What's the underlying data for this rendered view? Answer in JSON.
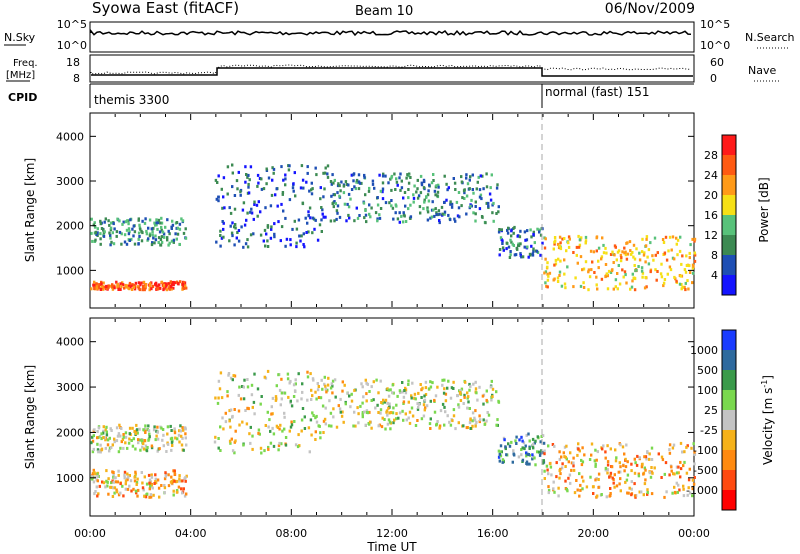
{
  "header": {
    "station": "Syowa East (fitACF)",
    "beam": "Beam 10",
    "date": "06/Nov/2009"
  },
  "panels": {
    "noise": {
      "left_label": "N.Sky",
      "right_label": "N.Search",
      "ticks": [
        "10^5",
        "10^0"
      ]
    },
    "freq": {
      "left_label_line1": "Freq.",
      "left_label_line2": "[MHz]",
      "left_ticks": [
        "18",
        "8"
      ],
      "right_label": "Nave",
      "right_ticks": [
        "60",
        "0"
      ]
    },
    "cpid": {
      "label": "CPID",
      "segments": [
        {
          "name": "themis 3300",
          "start_hour": 0,
          "end_hour": 18
        },
        {
          "name": "normal (fast) 151",
          "start_hour": 18,
          "end_hour": 24
        }
      ]
    }
  },
  "chart_data": [
    {
      "type": "heatmap",
      "title": "",
      "xlabel": "Time UT",
      "ylabel": "Slant Range [km]",
      "ylim": [
        180,
        4500
      ],
      "yticks": [
        "1000",
        "2000",
        "3000",
        "4000"
      ],
      "xlim": [
        0,
        24
      ],
      "colorbar": {
        "label": "Power [dB]",
        "ticks": [
          "4",
          "8",
          "12",
          "16",
          "20",
          "24",
          "28"
        ],
        "colors": [
          "#1414ff",
          "#1e4fb4",
          "#3c8a52",
          "#58c27a",
          "#f6e016",
          "#ff9a18",
          "#ff5a12",
          "#ff1a1a"
        ]
      },
      "echo_regions": [
        {
          "t0": 0.0,
          "t1": 3.8,
          "r0": 600,
          "r1": 780,
          "value": 26
        },
        {
          "t0": 0.0,
          "t1": 3.8,
          "r0": 1600,
          "r1": 2200,
          "value": 10
        },
        {
          "t0": 4.9,
          "t1": 9.5,
          "r0": 1550,
          "r1": 3400,
          "value": 6
        },
        {
          "t0": 9.5,
          "t1": 16.2,
          "r0": 2100,
          "r1": 3200,
          "value": 9
        },
        {
          "t0": 16.2,
          "t1": 18.0,
          "r0": 1300,
          "r1": 2000,
          "value": 8
        },
        {
          "t0": 18.0,
          "t1": 24.0,
          "r0": 600,
          "r1": 1800,
          "value": 20
        }
      ]
    },
    {
      "type": "heatmap",
      "title": "",
      "xlabel": "Time UT",
      "ylabel": "Slant Range [km]",
      "ylim": [
        180,
        4500
      ],
      "yticks": [
        "1000",
        "2000",
        "3000",
        "4000"
      ],
      "xlim": [
        0,
        24
      ],
      "xticks": [
        "00:00",
        "04:00",
        "08:00",
        "12:00",
        "16:00",
        "20:00",
        "00:00"
      ],
      "colorbar": {
        "label": "Velocity [m s^-1]",
        "ticks": [
          "1000",
          "500",
          "100",
          "25",
          "-25",
          "-100",
          "-500",
          "-1000"
        ],
        "colors": [
          "#1a3cff",
          "#2e6a9e",
          "#3a9a4a",
          "#7ad84e",
          "#c4c4c4",
          "#f5b21a",
          "#ff8a10",
          "#ff4a10",
          "#ff0000"
        ]
      },
      "echo_regions": [
        {
          "t0": 0.0,
          "t1": 3.8,
          "r0": 600,
          "r1": 1200,
          "value": -300
        },
        {
          "t0": 0.0,
          "t1": 3.8,
          "r0": 1600,
          "r1": 2200,
          "value": 0
        },
        {
          "t0": 4.9,
          "t1": 9.5,
          "r0": 1550,
          "r1": 3400,
          "value": 0
        },
        {
          "t0": 9.5,
          "t1": 16.2,
          "r0": 2100,
          "r1": 3200,
          "value": 50
        },
        {
          "t0": 16.2,
          "t1": 18.0,
          "r0": 1300,
          "r1": 2000,
          "value": 150
        },
        {
          "t0": 18.0,
          "t1": 24.0,
          "r0": 600,
          "r1": 1800,
          "value": -200
        }
      ]
    }
  ]
}
